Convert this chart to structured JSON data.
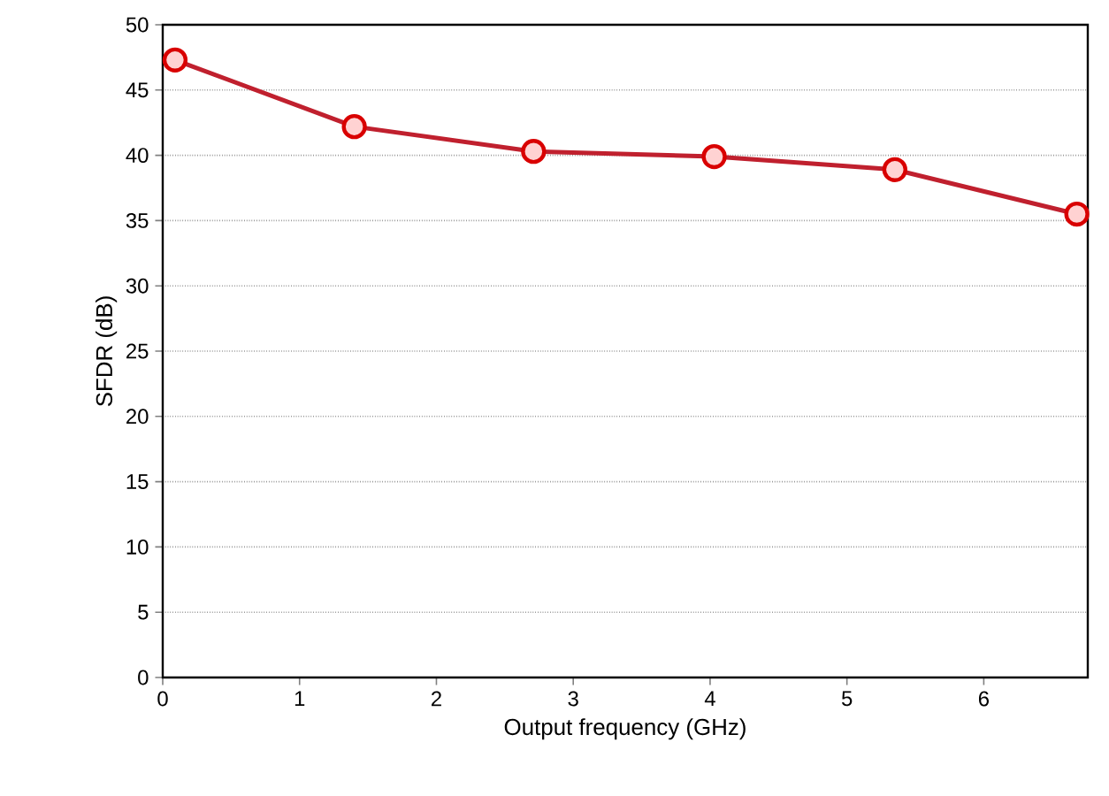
{
  "chart_data": {
    "type": "line",
    "xlabel": "Output frequency (GHz)",
    "ylabel": "SFDR (dB)",
    "x": [
      0.09,
      1.4,
      2.71,
      4.03,
      5.35,
      6.68
    ],
    "series": [
      {
        "color": "#c0202e",
        "values": [
          47.3,
          42.2,
          40.3,
          39.9,
          38.9,
          35.5
        ]
      }
    ],
    "xlim": [
      0,
      6.76
    ],
    "xticks": [
      0,
      1,
      2,
      3,
      4,
      5,
      6
    ],
    "ylim": [
      0,
      50
    ],
    "yticks": [
      0,
      5,
      10,
      15,
      20,
      25,
      30,
      35,
      40,
      45,
      50
    ],
    "grid": "y",
    "marker": "circle",
    "line_style": "solid"
  }
}
